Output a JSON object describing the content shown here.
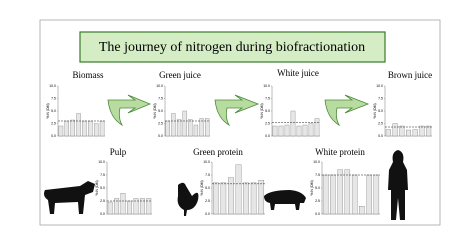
{
  "title": "The journey of nitrogen during biofractionation",
  "panels": [
    {
      "label": "Biomass",
      "y_label": "% N (DM)",
      "ylim": [
        0,
        10
      ],
      "yticks": [
        {
          "value": 0,
          "label": "0.0"
        },
        {
          "value": 2.5,
          "label": "2.5"
        },
        {
          "value": 5,
          "label": "5.0"
        },
        {
          "value": 7.5,
          "label": "7.5"
        },
        {
          "value": 10,
          "label": "10.0"
        }
      ],
      "dashed_line": 3,
      "values": [
        2.0,
        3.0,
        3.2,
        4.5,
        3.0,
        3.0,
        2.5,
        3.0
      ]
    },
    {
      "label": "Green juice",
      "y_label": "% N (DM)",
      "ylim": [
        0,
        10
      ],
      "yticks": [
        {
          "value": 0,
          "label": "0.0"
        },
        {
          "value": 2.5,
          "label": "2.5"
        },
        {
          "value": 5,
          "label": "5.0"
        },
        {
          "value": 7.5,
          "label": "7.5"
        },
        {
          "value": 10,
          "label": "10.0"
        }
      ],
      "dashed_line": 3,
      "values": [
        3.0,
        4.5,
        3.3,
        5.0,
        3.3,
        2.2,
        3.5,
        3.5
      ]
    },
    {
      "label": "White juice",
      "y_label": "% N (DM)",
      "ylim": [
        0,
        10
      ],
      "yticks": [
        {
          "value": 0,
          "label": "0.0"
        },
        {
          "value": 2.5,
          "label": "2.5"
        },
        {
          "value": 5,
          "label": "5.0"
        },
        {
          "value": 7.5,
          "label": "7.5"
        },
        {
          "value": 10,
          "label": "10.0"
        }
      ],
      "dashed_line": 2.7,
      "values": [
        2.0,
        2.0,
        2.2,
        5.0,
        2.0,
        2.2,
        2.5,
        3.5
      ]
    },
    {
      "label": "Brown juice",
      "y_label": "% N (DM)",
      "ylim": [
        0,
        10
      ],
      "yticks": [
        {
          "value": 0,
          "label": "0.0"
        },
        {
          "value": 2.5,
          "label": "2.5"
        },
        {
          "value": 5,
          "label": "5.0"
        },
        {
          "value": 7.5,
          "label": "7.5"
        },
        {
          "value": 10,
          "label": "10.0"
        }
      ],
      "dashed_line": 1.8,
      "values": [
        1.3,
        2.5,
        2.0,
        1.2,
        1.3,
        2.0,
        2.0
      ]
    },
    {
      "label": "Pulp",
      "y_label": "% N (DM)",
      "ylim": [
        0,
        10
      ],
      "yticks": [
        {
          "value": 0,
          "label": "0.0"
        },
        {
          "value": 2.5,
          "label": "2.5"
        },
        {
          "value": 5,
          "label": "5.0"
        },
        {
          "value": 7.5,
          "label": "7.5"
        },
        {
          "value": 10,
          "label": "10.0"
        }
      ],
      "dashed_line": 2.5,
      "values": [
        2.3,
        3.0,
        4.0,
        2.5,
        3.0,
        3.0,
        3.0
      ]
    },
    {
      "label": "Green protein",
      "y_label": "% N (DM)",
      "ylim": [
        0,
        10
      ],
      "yticks": [
        {
          "value": 0,
          "label": "0.0"
        },
        {
          "value": 2.5,
          "label": "2.5"
        },
        {
          "value": 5,
          "label": "5.0"
        },
        {
          "value": 7.5,
          "label": "7.5"
        },
        {
          "value": 10,
          "label": "10.0"
        }
      ],
      "dashed_line": 5.8,
      "values": [
        6.0,
        6.0,
        7.0,
        9.5,
        6.0,
        6.0,
        6.5
      ]
    },
    {
      "label": "White protein",
      "y_label": "% N (DM)",
      "ylim": [
        0,
        10
      ],
      "yticks": [
        {
          "value": 0,
          "label": "0.0"
        },
        {
          "value": 2.5,
          "label": "2.5"
        },
        {
          "value": 5,
          "label": "5.0"
        },
        {
          "value": 7.5,
          "label": "7.5"
        },
        {
          "value": 10,
          "label": "10.0"
        }
      ],
      "dashed_line": 7.5,
      "values": [
        7.5,
        7.5,
        8.5,
        8.5,
        7.5,
        1.5,
        7.5,
        7.5
      ]
    }
  ]
}
